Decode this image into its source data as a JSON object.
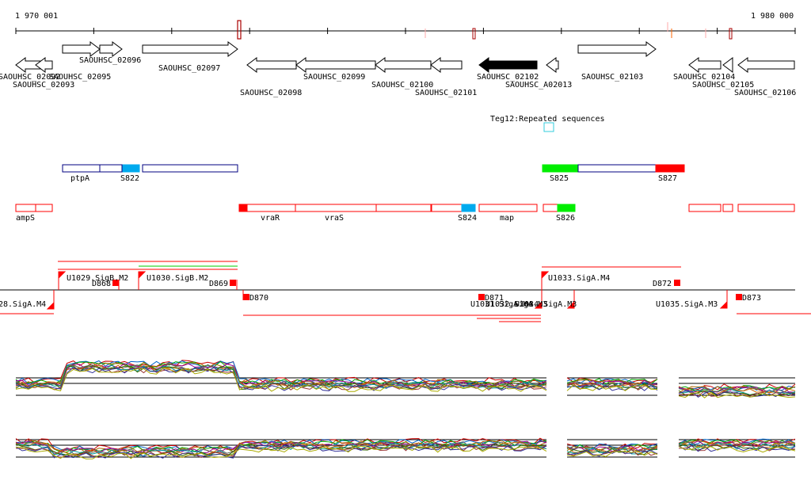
{
  "ruler": {
    "start_label": "1 970 001",
    "end_label": "1 980 000"
  },
  "genes": [
    {
      "id": "g0",
      "label": "SAOUHSC_02092"
    },
    {
      "id": "g1",
      "label": "SAOUHSC_02093"
    },
    {
      "id": "g2",
      "label": "SAOUHSC_02095"
    },
    {
      "id": "g3",
      "label": "SAOUHSC_02096"
    },
    {
      "id": "g4",
      "label": "SAOUHSC_02097"
    },
    {
      "id": "g5",
      "label": "SAOUHSC_02098"
    },
    {
      "id": "g6",
      "label": "SAOUHSC_02099"
    },
    {
      "id": "g7",
      "label": "SAOUHSC_02100"
    },
    {
      "id": "g8",
      "label": "SAOUHSC_02101"
    },
    {
      "id": "g9",
      "label": "SAOUHSC_02102"
    },
    {
      "id": "g10",
      "label": "SAOUHSC_A02013"
    },
    {
      "id": "g11",
      "label": "SAOUHSC_02103"
    },
    {
      "id": "g12",
      "label": "SAOUHSC_02104"
    },
    {
      "id": "g13",
      "label": "SAOUHSC_02105"
    },
    {
      "id": "g14",
      "label": "SAOUHSC_02106"
    }
  ],
  "repeat_label": "Teg12:Repeated sequences",
  "blue_track": [
    "ptpA",
    "S822",
    "S825",
    "S827"
  ],
  "red_track": [
    "ampS",
    "vraR",
    "vraS",
    "S824",
    "map",
    "S826"
  ],
  "promoters": [
    "28.SigA.M4",
    "U1029.SigB.M2",
    "U1030.SigB.M2",
    "U1031.SigA.M4",
    "U1032.SigA.M3",
    "U1033.SigA.M4",
    "U1034.SigA.M3",
    "U1035.SigA.M3"
  ],
  "terminators": [
    "D868",
    "D869",
    "D870",
    "D871",
    "D872",
    "D873"
  ],
  "colors": {
    "red": "#ff0000",
    "blue": "#000080",
    "green": "#00ee00",
    "cyan": "#00aaee",
    "gene_fill": "#ffffff",
    "highlight": "#000000",
    "marker": "#cc0000"
  }
}
